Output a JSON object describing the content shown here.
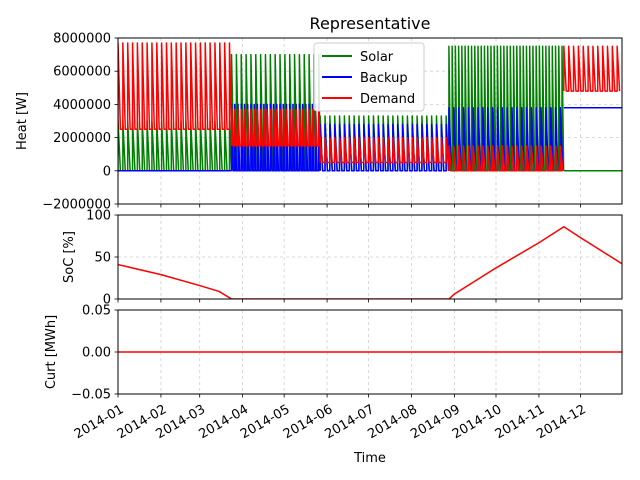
{
  "chart_data": [
    {
      "type": "line",
      "title": "Representative",
      "ylabel": "Heat [W]",
      "ylim": [
        -2000000,
        8000000
      ],
      "yticks": [
        -2000000,
        0,
        2000000,
        4000000,
        6000000,
        8000000
      ],
      "ytick_labels": [
        "−2000000",
        "0",
        "2000000",
        "4000000",
        "6000000",
        "8000000"
      ],
      "grid": true,
      "legend_position": "top-center",
      "legend": [
        "Solar",
        "Backup",
        "Demand"
      ],
      "series": [
        {
          "name": "Solar",
          "color": "#008000",
          "periods": [
            {
              "start": "2014-01-01",
              "end": "2014-03-24",
              "low": 0,
              "high": 3000000,
              "pulses_per_week": 2
            },
            {
              "start": "2014-03-24",
              "end": "2014-05-27",
              "low": 0,
              "high": 7000000,
              "pulses_per_week": 2
            },
            {
              "start": "2014-05-27",
              "end": "2014-08-28",
              "low": 0,
              "high": 3300000,
              "pulses_per_week": 2
            },
            {
              "start": "2014-08-28",
              "end": "2014-11-19",
              "low": 0,
              "high": 7500000,
              "pulses_per_week": 3
            },
            {
              "start": "2014-11-19",
              "end": "2014-12-31",
              "low": 0,
              "high": 0,
              "pulses_per_week": 0
            }
          ]
        },
        {
          "name": "Backup",
          "color": "#0000ff",
          "periods": [
            {
              "start": "2014-01-01",
              "end": "2014-03-24",
              "low": 0,
              "high": 0,
              "pulses_per_week": 0
            },
            {
              "start": "2014-03-24",
              "end": "2014-05-27",
              "low": 0,
              "high": 4000000,
              "pulses_per_week": 3
            },
            {
              "start": "2014-05-27",
              "end": "2014-08-28",
              "low": 0,
              "high": 2800000,
              "pulses_per_week": 2
            },
            {
              "start": "2014-08-28",
              "end": "2014-11-19",
              "low": 0,
              "high": 3800000,
              "pulses_per_week": 2
            },
            {
              "start": "2014-11-19",
              "end": "2014-12-31",
              "low": 3800000,
              "high": 3800000,
              "pulses_per_week": 0
            }
          ]
        },
        {
          "name": "Demand",
          "color": "#ff0000",
          "periods": [
            {
              "start": "2014-01-01",
              "end": "2014-03-24",
              "low": 2500000,
              "high": 7700000,
              "pulses_per_week": 2
            },
            {
              "start": "2014-03-24",
              "end": "2014-05-27",
              "low": 1500000,
              "high": 3700000,
              "pulses_per_week": 3
            },
            {
              "start": "2014-05-27",
              "end": "2014-08-28",
              "low": 500000,
              "high": 2000000,
              "pulses_per_week": 2
            },
            {
              "start": "2014-08-28",
              "end": "2014-11-19",
              "low": 0,
              "high": 1500000,
              "pulses_per_week": 2
            },
            {
              "start": "2014-11-19",
              "end": "2014-12-31",
              "low": 4800000,
              "high": 7500000,
              "pulses_per_week": 2
            }
          ]
        }
      ]
    },
    {
      "type": "line",
      "ylabel": "SoC [%]",
      "ylim": [
        0,
        100
      ],
      "yticks": [
        0,
        50,
        100
      ],
      "ytick_labels": [
        "0",
        "50",
        "100"
      ],
      "grid": true,
      "series": [
        {
          "color": "#ff0000",
          "x": [
            "2014-01-01",
            "2014-02-01",
            "2014-03-01",
            "2014-03-15",
            "2014-03-24",
            "2014-05-01",
            "2014-07-01",
            "2014-08-28",
            "2014-09-01",
            "2014-10-01",
            "2014-11-01",
            "2014-11-19",
            "2014-12-01",
            "2014-12-31"
          ],
          "y": [
            41,
            29,
            16,
            9,
            0,
            0,
            0,
            0,
            6,
            37,
            67,
            86,
            73,
            42
          ]
        }
      ]
    },
    {
      "type": "line",
      "ylabel": "Curt [MWh]",
      "xlabel": "Time",
      "ylim": [
        -0.05,
        0.05
      ],
      "yticks": [
        -0.05,
        0.0,
        0.05
      ],
      "ytick_labels": [
        "−0.05",
        "0.00",
        "0.05"
      ],
      "grid": true,
      "series": [
        {
          "color": "#ff0000",
          "x": [
            "2014-01-01",
            "2014-11-19",
            "2014-12-31"
          ],
          "y": [
            0,
            0,
            0
          ]
        }
      ]
    }
  ],
  "x_axis": {
    "type": "date",
    "xlim": [
      "2014-01-01",
      "2014-12-31"
    ],
    "ticks": [
      "2014-01-01",
      "2014-02-01",
      "2014-03-01",
      "2014-04-01",
      "2014-05-01",
      "2014-06-01",
      "2014-07-01",
      "2014-08-01",
      "2014-09-01",
      "2014-10-01",
      "2014-11-01",
      "2014-12-01"
    ],
    "tick_labels": [
      "2014-01",
      "2014-02",
      "2014-03",
      "2014-04",
      "2014-05",
      "2014-06",
      "2014-07",
      "2014-08",
      "2014-09",
      "2014-10",
      "2014-11",
      "2014-12"
    ]
  }
}
